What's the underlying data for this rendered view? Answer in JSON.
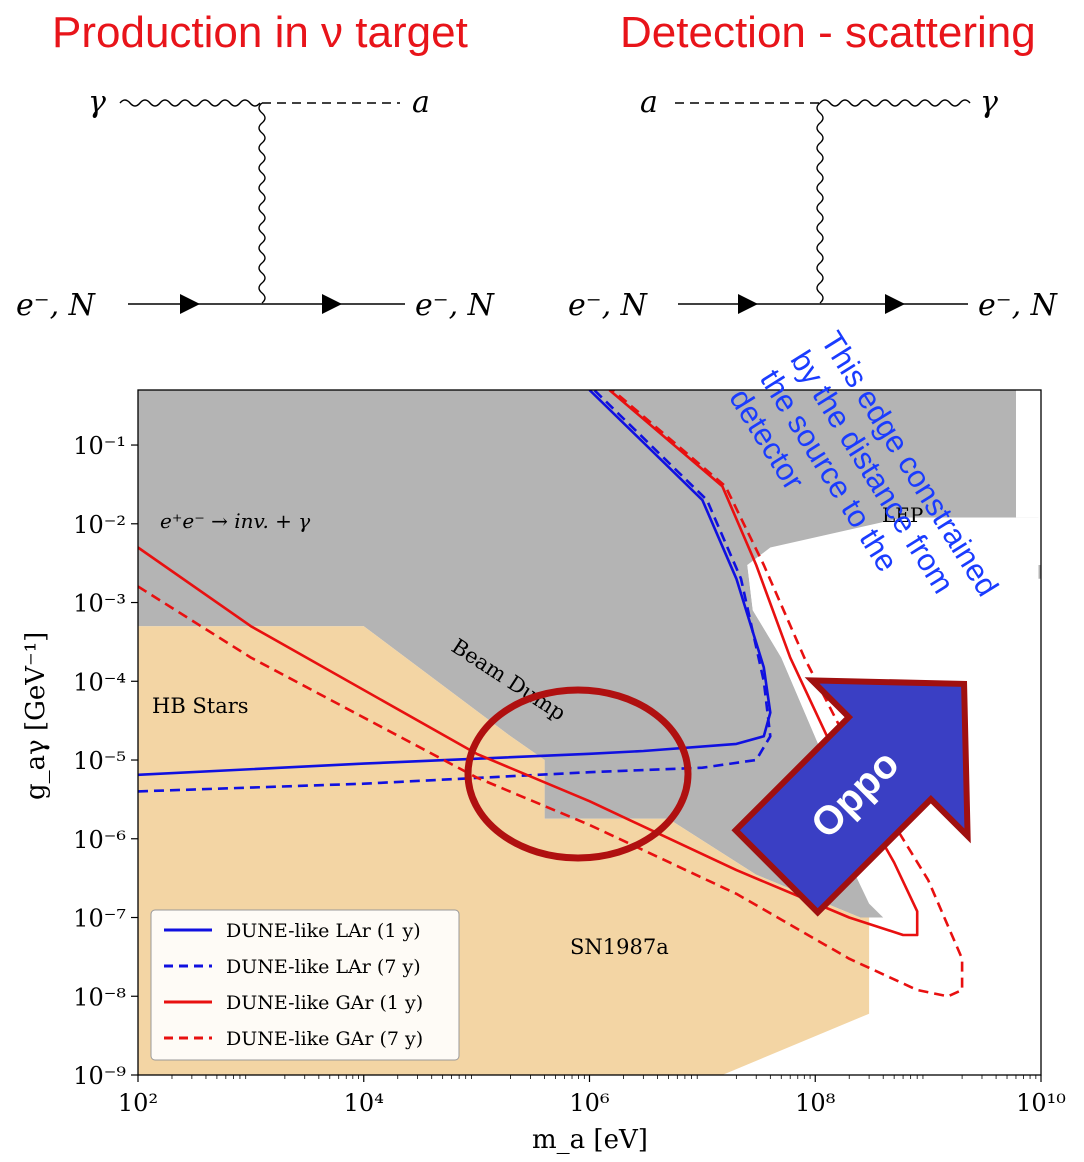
{
  "slide": {
    "left_title": "Production in ν target",
    "right_title": "Detection - scattering"
  },
  "diagram_left": {
    "photon": "γ",
    "axion": "a",
    "fermion_in": "e⁻, N",
    "fermion_out": "e⁻, N"
  },
  "diagram_right": {
    "axion": "a",
    "photon": "γ",
    "fermion_in": "e⁻, N",
    "fermion_out": "e⁻, N"
  },
  "annotation": {
    "lines": [
      "This edge constrained",
      "by the distance from",
      "the source to the",
      "detector"
    ],
    "color": "#1a3cff"
  },
  "arrow": {
    "label": "Oppo",
    "fill": "#3a3fc4",
    "border": "#a01010"
  },
  "colors": {
    "excluded_gray": "#b4b4b4",
    "astro_tan": "#f3d5a4",
    "lar": "#1010e0",
    "gar": "#e81010",
    "circle": "#b01010"
  },
  "chart_data": {
    "type": "line",
    "xlabel": "m_a [eV]",
    "ylabel": "g_aγ [GeV⁻¹]",
    "xscale": "log",
    "yscale": "log",
    "xlim": [
      100,
      10000000000
    ],
    "ylim": [
      1e-09,
      0.5
    ],
    "x_ticks": [
      "10²",
      "10⁴",
      "10⁶",
      "10⁸",
      "10¹⁰"
    ],
    "y_ticks": [
      "10⁻⁹",
      "10⁻⁸",
      "10⁻⁷",
      "10⁻⁶",
      "10⁻⁵",
      "10⁻⁴",
      "10⁻³",
      "10⁻²",
      "10⁻¹"
    ],
    "region_labels": {
      "ee": "e⁺e⁻ → inv. + γ",
      "lep": "LEP",
      "beam_dump": "Beam Dump",
      "hb": "HB Stars",
      "sn": "SN1987a"
    },
    "regions": {
      "gray": [
        [
          100,
          0.5
        ],
        [
          6000000000.0,
          0.5
        ],
        [
          6000000000.0,
          0.003
        ],
        [
          10000000000.0,
          0.003
        ],
        [
          10000000000.0,
          0.5
        ],
        [
          10000000000.0,
          0.002
        ],
        [
          9500000000.0,
          0.002
        ],
        [
          9500000000.0,
          0.012
        ],
        [
          600000000.0,
          0.012
        ],
        [
          40000000.0,
          0.005
        ],
        [
          25000000.0,
          0.003
        ],
        [
          28000000.0,
          0.0008
        ],
        [
          50000000.0,
          0.0002
        ],
        [
          150000000.0,
          5e-06
        ],
        [
          150000000.0,
          1.2e-06
        ],
        [
          300000000.0,
          1.5e-07
        ],
        [
          400000000.0,
          1e-07
        ],
        [
          250000000.0,
          1e-07
        ],
        [
          30000000.0,
          3.5e-07
        ],
        [
          5000000.0,
          1.8e-06
        ],
        [
          400000,
          1.8e-06
        ],
        [
          400000,
          1e-05
        ],
        [
          200000,
          2e-05
        ],
        [
          10000,
          0.0005
        ],
        [
          100,
          0.0005
        ]
      ],
      "white": [
        [
          28000000.0,
          0.0008
        ],
        [
          25000000.0,
          0.003
        ],
        [
          600000000.0,
          0.012
        ],
        [
          9500000000.0,
          0.012
        ],
        [
          9500000000.0,
          0.002
        ],
        [
          6000000000.0,
          0.002
        ],
        [
          6000000000.0,
          0.003
        ],
        [
          3000000000.0,
          0.003
        ],
        [
          1500000000.0,
          0.0005
        ],
        [
          300000000.0,
          0.0001
        ],
        [
          150000000.0,
          1.2e-06
        ],
        [
          150000000.0,
          5e-06
        ],
        [
          50000000.0,
          0.0002
        ]
      ],
      "tan": [
        [
          100,
          0.0005
        ],
        [
          10000,
          0.0005
        ],
        [
          200000,
          2e-05
        ],
        [
          400000,
          1e-05
        ],
        [
          400000,
          1.8e-06
        ],
        [
          5000000.0,
          1.8e-06
        ],
        [
          30000000.0,
          3.5e-07
        ],
        [
          250000000.0,
          1e-07
        ],
        [
          300000000.0,
          1e-07
        ],
        [
          300000000.0,
          6e-09
        ],
        [
          15000000.0,
          1e-09
        ],
        [
          100,
          1e-09
        ]
      ]
    },
    "series": [
      {
        "name": "DUNE-like LAr (1 y)",
        "style": "solid",
        "color": "#1010e0",
        "points": [
          [
            100,
            6.5e-06
          ],
          [
            10000,
            9e-06
          ],
          [
            1000000,
            1.2e-05
          ],
          [
            3000000,
            1.3e-05
          ],
          [
            20000000,
            1.6e-05
          ],
          [
            35000000,
            2e-05
          ],
          [
            40000000,
            4e-05
          ],
          [
            35000000,
            0.00015
          ],
          [
            20000000,
            0.002
          ],
          [
            10000000,
            0.02
          ],
          [
            1000000,
            0.5
          ]
        ]
      },
      {
        "name": "DUNE-like LAr (7 y)",
        "style": "dashed",
        "color": "#1010e0",
        "points": [
          [
            100,
            4e-06
          ],
          [
            10000,
            5e-06
          ],
          [
            1000000,
            7e-06
          ],
          [
            10000000,
            8e-06
          ],
          [
            30000000,
            1e-05
          ],
          [
            40000000,
            2e-05
          ],
          [
            35000000,
            0.0001
          ],
          [
            22000000,
            0.002
          ],
          [
            11000000,
            0.02
          ],
          [
            1100000,
            0.5
          ]
        ]
      },
      {
        "name": "DUNE-like GAr (1 y)",
        "style": "solid",
        "color": "#e81010",
        "points": [
          [
            100,
            0.005
          ],
          [
            1000,
            0.0005
          ],
          [
            100000,
            1.2e-05
          ],
          [
            1000000,
            3e-06
          ],
          [
            20000000,
            4e-07
          ],
          [
            200000000,
            1e-07
          ],
          [
            600000000,
            6e-08
          ],
          [
            800000000,
            6e-08
          ],
          [
            800000000,
            1.2e-07
          ],
          [
            500000000,
            5e-07
          ],
          [
            200000000,
            5e-06
          ],
          [
            60000000,
            0.0002
          ],
          [
            30000000,
            0.003
          ],
          [
            15000000,
            0.03
          ],
          [
            1500000,
            0.5
          ]
        ]
      },
      {
        "name": "DUNE-like GAr (7 y)",
        "style": "dashed",
        "color": "#e81010",
        "points": [
          [
            100,
            0.0016
          ],
          [
            1000,
            0.0002
          ],
          [
            100000,
            6e-06
          ],
          [
            1000000,
            1.5e-06
          ],
          [
            20000000,
            2e-07
          ],
          [
            200000000,
            3e-08
          ],
          [
            800000000,
            1.2e-08
          ],
          [
            1500000000,
            1e-08
          ],
          [
            2000000000,
            1.2e-08
          ],
          [
            2000000000,
            3e-08
          ],
          [
            1000000000,
            3e-07
          ],
          [
            300000000,
            5e-06
          ],
          [
            80000000,
            0.0002
          ],
          [
            35000000,
            0.003
          ],
          [
            16000000,
            0.03
          ],
          [
            1600000,
            0.5
          ]
        ]
      }
    ]
  }
}
